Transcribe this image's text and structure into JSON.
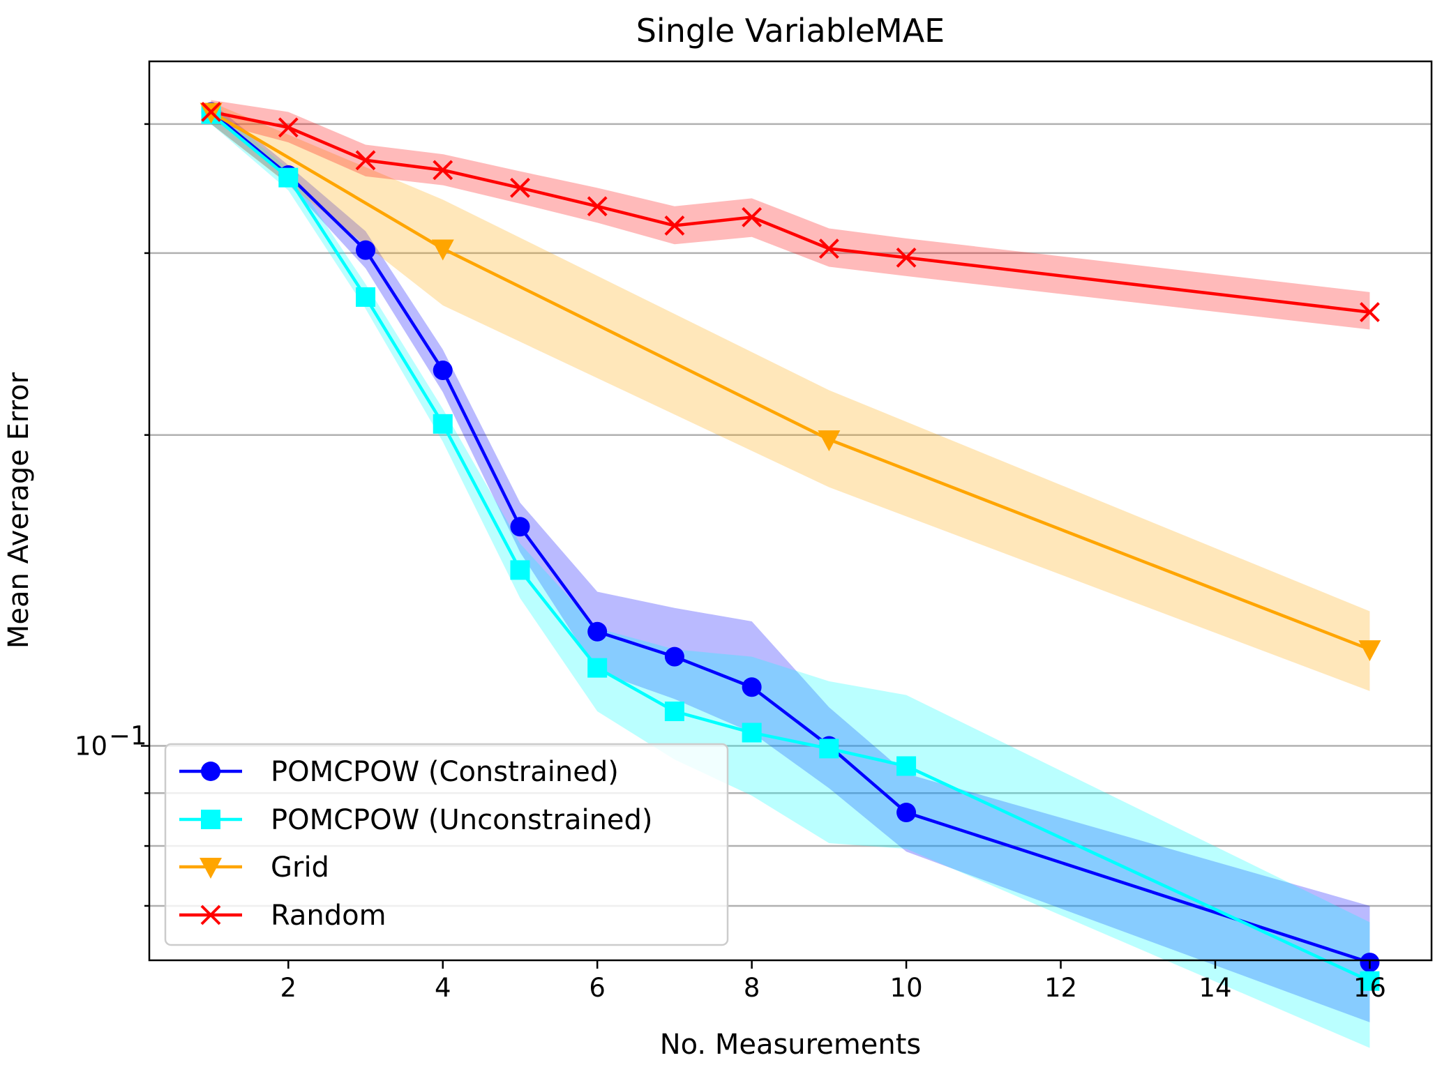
{
  "chart_data": {
    "type": "line",
    "title": "Single VariableMAE",
    "xlabel": "No. Measurements",
    "ylabel": "Mean Average Error",
    "y_scale": "log",
    "xlim": [
      0.2,
      16.8
    ],
    "ylim": [
      0.062,
      0.46
    ],
    "x_ticks": [
      2,
      4,
      6,
      8,
      10,
      12,
      14,
      16
    ],
    "x_tick_labels": [
      "2",
      "4",
      "6",
      "8",
      "10",
      "12",
      "14",
      "16"
    ],
    "y_ticks_labeled": [
      0.1
    ],
    "y_tick_labels": [
      "10",
      "−1"
    ],
    "y_minor_ticks": [
      0.07,
      0.08,
      0.09,
      0.2,
      0.3,
      0.4
    ],
    "grid": "horizontal",
    "legend_position": "lower-left",
    "series": [
      {
        "name": "POMCPOW (Constrained)",
        "color": "#0000ff",
        "marker": "circle",
        "x": [
          1,
          2,
          3,
          4,
          5,
          6,
          7,
          8,
          9,
          10,
          16
        ],
        "y": [
          0.411,
          0.357,
          0.302,
          0.231,
          0.163,
          0.129,
          0.122,
          0.114,
          0.1,
          0.0862,
          0.0617
        ],
        "lower": [
          0.4,
          0.35,
          0.29,
          0.22,
          0.154,
          0.118,
          0.111,
          0.103,
          0.091,
          0.079,
          0.054
        ],
        "upper": [
          0.42,
          0.365,
          0.315,
          0.242,
          0.172,
          0.141,
          0.136,
          0.132,
          0.109,
          0.094,
          0.07
        ]
      },
      {
        "name": "POMCPOW (Unconstrained)",
        "color": "#00ffff",
        "marker": "square",
        "x": [
          1,
          2,
          3,
          4,
          5,
          6,
          7,
          8,
          9,
          10,
          16
        ],
        "y": [
          0.409,
          0.355,
          0.272,
          0.205,
          0.148,
          0.119,
          0.108,
          0.103,
          0.0994,
          0.0956,
          0.0592
        ],
        "lower": [
          0.4,
          0.345,
          0.265,
          0.197,
          0.139,
          0.108,
          0.097,
          0.0895,
          0.0805,
          0.0795,
          0.051
        ],
        "upper": [
          0.418,
          0.362,
          0.28,
          0.212,
          0.157,
          0.13,
          0.124,
          0.122,
          0.1155,
          0.112,
          0.0675
        ]
      },
      {
        "name": "Grid",
        "color": "#ffa500",
        "marker": "triangle-down",
        "x": [
          1,
          4,
          9,
          16
        ],
        "y": [
          0.411,
          0.303,
          0.198,
          0.124
        ],
        "lower": [
          0.4,
          0.267,
          0.178,
          0.113
        ],
        "upper": [
          0.42,
          0.338,
          0.221,
          0.135
        ]
      },
      {
        "name": "Random",
        "color": "#ff0000",
        "marker": "x",
        "x": [
          1,
          2,
          3,
          4,
          5,
          6,
          7,
          8,
          9,
          10,
          16
        ],
        "y": [
          0.411,
          0.397,
          0.369,
          0.361,
          0.347,
          0.333,
          0.319,
          0.325,
          0.303,
          0.297,
          0.263
        ],
        "lower": [
          0.402,
          0.384,
          0.356,
          0.349,
          0.335,
          0.321,
          0.306,
          0.311,
          0.291,
          0.285,
          0.253
        ],
        "upper": [
          0.422,
          0.411,
          0.382,
          0.374,
          0.36,
          0.347,
          0.333,
          0.339,
          0.317,
          0.31,
          0.275
        ]
      }
    ]
  }
}
